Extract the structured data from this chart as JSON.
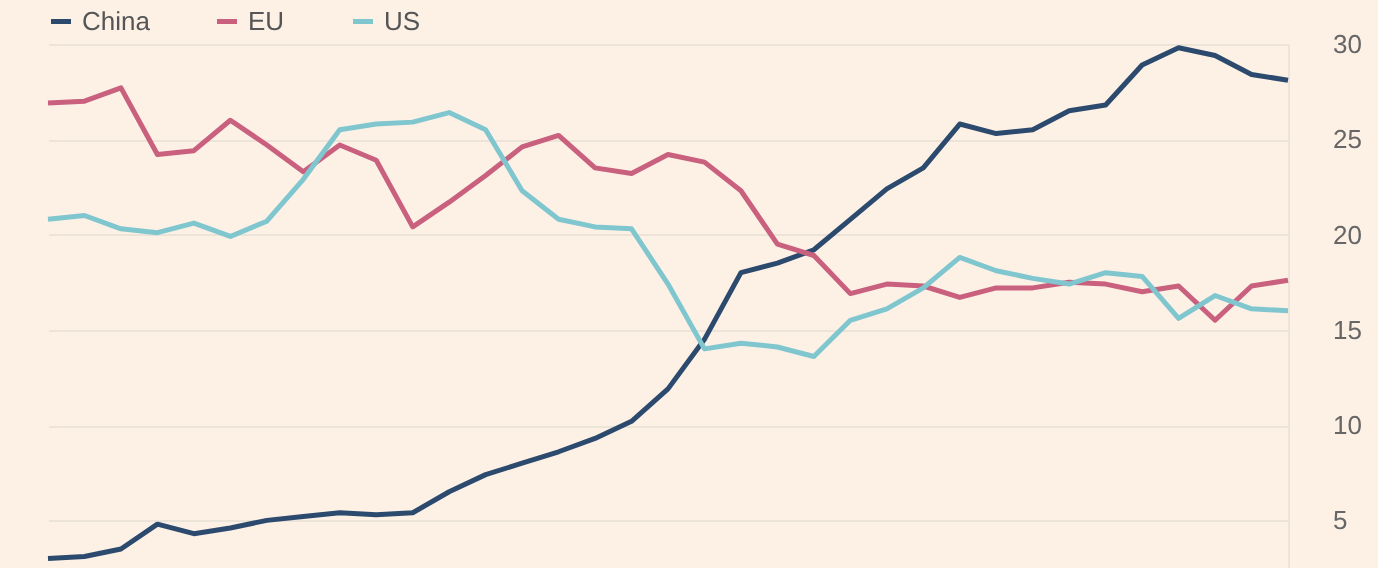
{
  "chart_data": {
    "type": "line",
    "categories": [
      null,
      null,
      null,
      null,
      null,
      null,
      null,
      null,
      null,
      null,
      null,
      null,
      null,
      null,
      null,
      null,
      null,
      null,
      null,
      null,
      null,
      null,
      null,
      null,
      null,
      null,
      null,
      null,
      null,
      null,
      null,
      null,
      null,
      null,
      null
    ],
    "series": [
      {
        "name": "China",
        "color": "#2c4a6e",
        "values": [
          3.0,
          3.1,
          3.5,
          4.8,
          4.3,
          4.6,
          5.0,
          5.2,
          5.4,
          5.3,
          5.4,
          6.5,
          7.4,
          8.0,
          8.6,
          9.3,
          10.2,
          11.9,
          14.5,
          18.0,
          18.5,
          19.2,
          20.8,
          22.4,
          23.5,
          25.8,
          25.3,
          25.5,
          26.5,
          26.8,
          28.9,
          29.8,
          29.4,
          28.4,
          28.1
        ]
      },
      {
        "name": "EU",
        "color": "#c9607e",
        "values": [
          26.9,
          27.0,
          27.7,
          24.2,
          24.4,
          26.0,
          24.7,
          23.3,
          24.7,
          23.9,
          20.4,
          21.7,
          23.1,
          24.6,
          25.2,
          23.5,
          23.2,
          24.2,
          23.8,
          22.3,
          19.5,
          18.9,
          16.9,
          17.4,
          17.3,
          16.7,
          17.2,
          17.2,
          17.5,
          17.4,
          17.0,
          17.3,
          15.5,
          17.3,
          17.6
        ]
      },
      {
        "name": "US",
        "color": "#7fc6cf",
        "values": [
          20.8,
          21.0,
          20.3,
          20.1,
          20.6,
          19.9,
          20.7,
          22.9,
          25.5,
          25.8,
          25.9,
          26.4,
          25.5,
          22.3,
          20.8,
          20.4,
          20.3,
          17.4,
          14.0,
          14.3,
          14.1,
          13.6,
          15.5,
          16.1,
          17.2,
          18.8,
          18.1,
          17.7,
          17.4,
          18.0,
          17.8,
          15.6,
          16.8,
          16.1,
          16.0
        ]
      }
    ],
    "ylim": [
      2.5,
      30
    ],
    "yticks": [
      5,
      10,
      15,
      20,
      25,
      30
    ],
    "grid": "y",
    "legend": "top left",
    "marker": "none",
    "line_style": "solid"
  }
}
